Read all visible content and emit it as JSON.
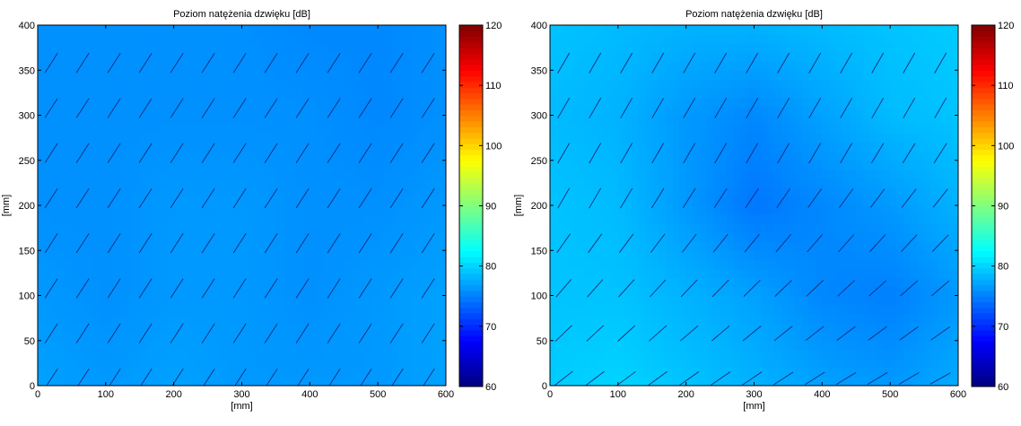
{
  "chart_data": [
    {
      "type": "heatmap",
      "title": "Poziom natężenia dzwięku [dB]",
      "xlabel": "[mm]",
      "ylabel": "[mm]",
      "xlim": [
        0,
        600
      ],
      "ylim": [
        0,
        400
      ],
      "xticks": [
        0,
        100,
        200,
        300,
        400,
        500,
        600
      ],
      "yticks": [
        0,
        50,
        100,
        150,
        200,
        250,
        300,
        350,
        400
      ],
      "grid": false,
      "colorbar": {
        "min": 60,
        "max": 120,
        "ticks": [
          60,
          70,
          80,
          90,
          100,
          110,
          120
        ],
        "colormap": "jet"
      },
      "field": {
        "x": [
          0,
          100,
          200,
          300,
          400,
          500,
          600
        ],
        "y": [
          0,
          100,
          200,
          300,
          400
        ],
        "values": [
          [
            77.0,
            76.5,
            77.0,
            76.5,
            76.5,
            76.5,
            77.0
          ],
          [
            76.5,
            76.0,
            76.5,
            76.5,
            76.0,
            76.5,
            77.0
          ],
          [
            76.0,
            76.0,
            76.5,
            76.5,
            76.0,
            76.0,
            76.5
          ],
          [
            76.0,
            76.0,
            76.0,
            76.0,
            76.0,
            75.5,
            76.0
          ],
          [
            76.0,
            76.0,
            76.0,
            76.0,
            75.5,
            75.5,
            76.0
          ]
        ]
      },
      "vectors": {
        "angle_deg": 57,
        "length_scale": 1.0
      }
    },
    {
      "type": "heatmap",
      "title": "Poziom natężenia dzwięku [dB]",
      "xlabel": "[mm]",
      "ylabel": "[mm]",
      "xlim": [
        0,
        600
      ],
      "ylim": [
        0,
        400
      ],
      "xticks": [
        0,
        100,
        200,
        300,
        400,
        500,
        600
      ],
      "yticks": [
        0,
        50,
        100,
        150,
        200,
        250,
        300,
        350,
        400
      ],
      "grid": false,
      "colorbar": {
        "min": 60,
        "max": 120,
        "ticks": [
          60,
          70,
          80,
          90,
          100,
          110,
          120
        ],
        "colormap": "jet"
      },
      "field": {
        "x": [
          0,
          100,
          200,
          300,
          400,
          500,
          600
        ],
        "y": [
          0,
          100,
          200,
          300,
          400
        ],
        "values": [
          [
            79.5,
            80.0,
            79.0,
            78.0,
            77.0,
            76.5,
            77.5
          ],
          [
            79.0,
            79.0,
            78.0,
            77.0,
            75.5,
            75.0,
            76.5
          ],
          [
            79.0,
            78.5,
            76.5,
            74.5,
            75.5,
            76.5,
            78.0
          ],
          [
            78.5,
            78.0,
            76.5,
            75.5,
            77.0,
            78.5,
            79.0
          ],
          [
            79.0,
            78.5,
            78.0,
            78.0,
            78.5,
            79.0,
            79.5
          ]
        ]
      },
      "vectors": {
        "angle_deg_bottom": 28,
        "angle_deg_top": 60,
        "length_scale": 1.0
      }
    }
  ]
}
